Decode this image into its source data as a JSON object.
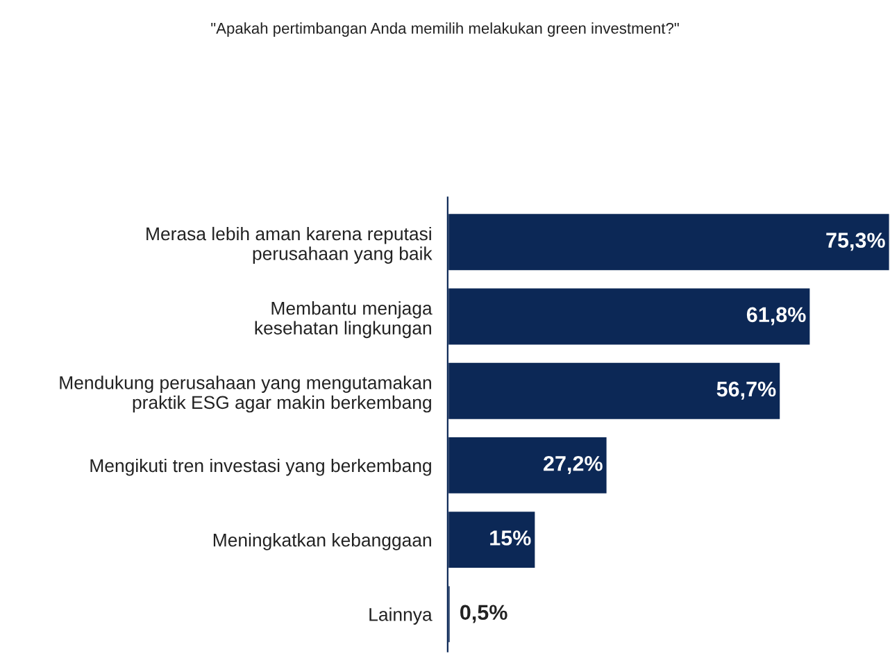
{
  "chart_data": {
    "type": "bar",
    "orientation": "horizontal",
    "title": "\"Apakah pertimbangan Anda memilih melakukan green investment?\"",
    "categories": [
      "Merasa lebih aman karena reputasi\nperusahaan yang baik",
      "Membantu menjaga\nkesehatan lingkungan",
      "Mendukung perusahaan yang mengutamakan\npraktik ESG agar makin berkembang",
      "Mengikuti tren investasi yang berkembang",
      "Meningkatkan kebanggaan",
      "Lainnya"
    ],
    "values": [
      75.3,
      61.8,
      56.7,
      27.2,
      15,
      0.5
    ],
    "value_labels": [
      "75,3%",
      "61,8%",
      "56,7%",
      "27,2%",
      "15%",
      "0,5%"
    ],
    "color": "#0c2856"
  }
}
